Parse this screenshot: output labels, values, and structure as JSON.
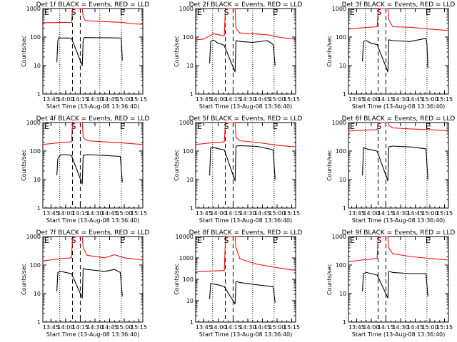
{
  "colors": {
    "events": "#000000",
    "lld": "#ee1111",
    "axes": "#000000",
    "background": "#ffffff"
  },
  "chart_data": [
    {
      "type": "line",
      "title": "Det 1f BLACK = Events, RED = LLD",
      "xlabel": "Start Time (13-Aug-08 13:36:40)",
      "ylabel": "Counts/sec",
      "yscale": "log",
      "ylim": [
        1,
        1000
      ],
      "xlim": [
        "13:36:40",
        "15:19:00"
      ],
      "x_ticks": [
        "13:45",
        "14:00",
        "14:15",
        "14:30",
        "14:45",
        "15:00",
        "15:15"
      ],
      "y_ticks": [
        "1",
        "10",
        "100",
        "1000"
      ],
      "grid": false,
      "markers": [
        "E",
        "S",
        "E"
      ],
      "dotted_lines": [
        "13:54",
        "14:35",
        "14:57"
      ],
      "dashed_lines": [
        "14:07",
        "14:15"
      ],
      "series": [
        {
          "color": "#000000",
          "x": [
            "13:51",
            "13:52",
            "13:53",
            "13:57",
            "14:02",
            "14:06",
            "14:17",
            "14:18",
            "14:19",
            "14:30",
            "14:45",
            "14:57",
            "14:58"
          ],
          "values": [
            13,
            75,
            95,
            92,
            93,
            90,
            10,
            80,
            96,
            95,
            94,
            92,
            15
          ]
        },
        {
          "color": "#ee1111",
          "x": [
            "13:36",
            "13:45",
            "14:00",
            "14:06",
            "14:07",
            "14:08",
            "14:17",
            "14:18",
            "14:20",
            "14:30",
            "14:45",
            "14:57",
            "15:10",
            "15:19"
          ],
          "values": [
            320,
            320,
            330,
            320,
            900,
            1000,
            1000,
            520,
            380,
            360,
            340,
            330,
            290,
            280
          ]
        }
      ]
    },
    {
      "type": "line",
      "title": "Det 2f BLACK = Events, RED = LLD",
      "xlabel": "Start Time (13-Aug-08 13:36:40)",
      "ylabel": "Counts/sec",
      "yscale": "log",
      "ylim": [
        1,
        1000
      ],
      "xlim": [
        "13:36:40",
        "15:19:00"
      ],
      "x_ticks": [
        "13:45",
        "14:00",
        "14:15",
        "14:30",
        "14:45",
        "15:00",
        "15:15"
      ],
      "y_ticks": [
        "1",
        "10",
        "100",
        "1000"
      ],
      "grid": false,
      "markers": [
        "E",
        "S",
        "E"
      ],
      "dotted_lines": [
        "13:54",
        "14:35",
        "14:57"
      ],
      "dashed_lines": [
        "14:07",
        "14:15"
      ],
      "series": [
        {
          "color": "#000000",
          "x": [
            "13:51",
            "13:52",
            "13:55",
            "14:00",
            "14:04",
            "14:06",
            "14:17",
            "14:18",
            "14:22",
            "14:35",
            "14:50",
            "14:56",
            "14:58"
          ],
          "values": [
            12,
            70,
            78,
            60,
            55,
            50,
            6,
            75,
            70,
            65,
            75,
            55,
            10
          ]
        },
        {
          "color": "#ee1111",
          "x": [
            "13:36",
            "13:45",
            "13:55",
            "14:06",
            "14:07",
            "14:08",
            "14:17",
            "14:18",
            "14:22",
            "14:35",
            "14:50",
            "15:05",
            "15:19"
          ],
          "values": [
            80,
            85,
            130,
            110,
            800,
            1000,
            1000,
            200,
            140,
            130,
            120,
            95,
            85
          ]
        }
      ]
    },
    {
      "type": "line",
      "title": "Det 3f BLACK = Events, RED = LLD",
      "xlabel": "Start Time (13-Aug-08 13:36:40)",
      "ylabel": "Counts/sec",
      "yscale": "log",
      "ylim": [
        1,
        1000
      ],
      "xlim": [
        "13:36:40",
        "15:19:00"
      ],
      "x_ticks": [
        "13:45",
        "14:00",
        "14:15",
        "14:30",
        "14:45",
        "15:00",
        "15:15"
      ],
      "y_ticks": [
        "1",
        "10",
        "100",
        "1000"
      ],
      "grid": false,
      "markers": [
        "E",
        "S",
        "E"
      ],
      "dotted_lines": [
        "13:54",
        "14:35",
        "14:57"
      ],
      "dashed_lines": [
        "14:07",
        "14:15"
      ],
      "series": [
        {
          "color": "#000000",
          "x": [
            "13:51",
            "13:52",
            "13:55",
            "14:00",
            "14:06",
            "14:17",
            "14:18",
            "14:22",
            "14:40",
            "14:56",
            "14:57",
            "14:58"
          ],
          "values": [
            14,
            70,
            75,
            60,
            55,
            6,
            80,
            75,
            70,
            90,
            55,
            8
          ]
        },
        {
          "color": "#ee1111",
          "x": [
            "13:36",
            "13:50",
            "14:06",
            "14:07",
            "14:08",
            "14:17",
            "14:18",
            "14:22",
            "14:40",
            "15:00",
            "15:19"
          ],
          "values": [
            190,
            210,
            230,
            800,
            1000,
            1000,
            400,
            230,
            220,
            190,
            170
          ]
        }
      ]
    },
    {
      "type": "line",
      "title": "Det 4f BLACK = Events, RED = LLD",
      "xlabel": "Start Time (13-Aug-08 13:36:40)",
      "ylabel": "Counts/sec",
      "yscale": "log",
      "ylim": [
        1,
        1000
      ],
      "xlim": [
        "13:36:40",
        "15:19:00"
      ],
      "x_ticks": [
        "13:45",
        "14:00",
        "14:15",
        "14:30",
        "14:45",
        "15:00",
        "15:15"
      ],
      "y_ticks": [
        "1",
        "10",
        "100",
        "1000"
      ],
      "grid": false,
      "markers": [
        "E",
        "S",
        "E"
      ],
      "dotted_lines": [
        "13:54",
        "14:35",
        "14:57"
      ],
      "dashed_lines": [
        "14:07",
        "14:15"
      ],
      "series": [
        {
          "color": "#000000",
          "x": [
            "13:51",
            "13:52",
            "13:55",
            "14:00",
            "14:06",
            "14:17",
            "14:18",
            "14:22",
            "14:40",
            "14:56",
            "14:58"
          ],
          "values": [
            14,
            55,
            75,
            75,
            70,
            7,
            70,
            75,
            70,
            65,
            8
          ]
        },
        {
          "color": "#ee1111",
          "x": [
            "13:36",
            "13:50",
            "14:06",
            "14:07",
            "14:08",
            "14:17",
            "14:18",
            "14:22",
            "14:40",
            "15:00",
            "15:19"
          ],
          "values": [
            170,
            190,
            210,
            800,
            1000,
            1000,
            300,
            230,
            210,
            190,
            170
          ]
        }
      ]
    },
    {
      "type": "line",
      "title": "Det 5f BLACK = Events, RED = LLD",
      "xlabel": "Start Time (13-Aug-08 13:36:40)",
      "ylabel": "Counts/sec",
      "yscale": "log",
      "ylim": [
        1,
        1000
      ],
      "xlim": [
        "13:36:40",
        "15:19:00"
      ],
      "x_ticks": [
        "13:45",
        "14:00",
        "14:15",
        "14:30",
        "14:45",
        "15:00",
        "15:15"
      ],
      "y_ticks": [
        "1",
        "10",
        "100",
        "1000"
      ],
      "grid": false,
      "markers": [
        "E",
        "S",
        "E"
      ],
      "dotted_lines": [
        "13:54",
        "14:35",
        "14:57"
      ],
      "dashed_lines": [
        "14:07",
        "14:15"
      ],
      "series": [
        {
          "color": "#000000",
          "x": [
            "13:51",
            "13:52",
            "13:55",
            "14:00",
            "14:06",
            "14:17",
            "14:18",
            "14:22",
            "14:40",
            "14:56",
            "14:58"
          ],
          "values": [
            14,
            130,
            135,
            120,
            110,
            9,
            150,
            155,
            145,
            110,
            10
          ]
        },
        {
          "color": "#ee1111",
          "x": [
            "13:36",
            "13:50",
            "14:06",
            "14:07",
            "14:08",
            "14:17",
            "14:18",
            "14:22",
            "14:40",
            "15:00",
            "15:19"
          ],
          "values": [
            170,
            190,
            210,
            800,
            1000,
            1000,
            300,
            230,
            200,
            160,
            140
          ]
        }
      ]
    },
    {
      "type": "line",
      "title": "Det 6f BLACK = Events, RED = LLD",
      "xlabel": "Start Time (13-Aug-08 13:36:40)",
      "ylabel": "Counts/sec",
      "yscale": "log",
      "ylim": [
        1,
        1000
      ],
      "xlim": [
        "13:36:40",
        "15:19:00"
      ],
      "x_ticks": [
        "13:45",
        "14:00",
        "14:15",
        "14:30",
        "14:45",
        "15:00",
        "15:15"
      ],
      "y_ticks": [
        "1",
        "10",
        "100",
        "1000"
      ],
      "grid": false,
      "markers": [
        "E",
        "S",
        "E"
      ],
      "dotted_lines": [
        "13:54",
        "14:35",
        "14:57"
      ],
      "dashed_lines": [
        "14:07",
        "14:15"
      ],
      "series": [
        {
          "color": "#000000",
          "x": [
            "13:51",
            "13:52",
            "13:55",
            "14:00",
            "14:06",
            "14:17",
            "14:18",
            "14:22",
            "14:40",
            "14:56",
            "14:58"
          ],
          "values": [
            14,
            130,
            120,
            110,
            100,
            9,
            140,
            150,
            140,
            120,
            10
          ]
        },
        {
          "color": "#ee1111",
          "x": [
            "13:36",
            "13:50",
            "14:06",
            "14:07",
            "14:08",
            "14:17",
            "14:18",
            "14:22",
            "14:40",
            "15:00",
            "15:19"
          ],
          "values": [
            500,
            540,
            560,
            900,
            1000,
            1000,
            800,
            650,
            600,
            560,
            520
          ]
        }
      ]
    },
    {
      "type": "line",
      "title": "Det 7f BLACK = Events, RED = LLD",
      "xlabel": "Start Time (13-Aug-08 13:36:40)",
      "ylabel": "Counts/sec",
      "yscale": "log",
      "ylim": [
        1,
        1000
      ],
      "xlim": [
        "13:36:40",
        "15:19:00"
      ],
      "x_ticks": [
        "13:45",
        "14:00",
        "14:15",
        "14:30",
        "14:45",
        "15:00",
        "15:15"
      ],
      "y_ticks": [
        "1",
        "10",
        "100",
        "1000"
      ],
      "grid": false,
      "markers": [
        "E",
        "S",
        "E"
      ],
      "dotted_lines": [
        "13:54",
        "14:35",
        "14:57"
      ],
      "dashed_lines": [
        "14:07",
        "14:15"
      ],
      "series": [
        {
          "color": "#000000",
          "x": [
            "13:51",
            "13:52",
            "13:55",
            "14:00",
            "14:06",
            "14:17",
            "14:18",
            "14:22",
            "14:40",
            "14:50",
            "14:56",
            "14:58"
          ],
          "values": [
            12,
            55,
            60,
            55,
            50,
            7,
            75,
            70,
            60,
            70,
            55,
            8
          ]
        },
        {
          "color": "#ee1111",
          "x": [
            "13:36",
            "13:50",
            "14:06",
            "14:07",
            "14:08",
            "14:17",
            "14:18",
            "14:22",
            "14:40",
            "14:50",
            "15:00",
            "15:19"
          ],
          "values": [
            140,
            160,
            180,
            800,
            1000,
            1000,
            400,
            220,
            180,
            230,
            180,
            150
          ]
        }
      ]
    },
    {
      "type": "line",
      "title": "Det 8f BLACK = Events, RED = LLD",
      "xlabel": "Start Time (13-Aug-08 13:36:40)",
      "ylabel": "Counts/sec",
      "yscale": "log",
      "ylim": [
        1,
        10000
      ],
      "xlim": [
        "13:36:40",
        "15:19:00"
      ],
      "x_ticks": [
        "13:45",
        "14:00",
        "14:15",
        "14:30",
        "14:45",
        "15:00",
        "15:15"
      ],
      "y_ticks": [
        "1",
        "10",
        "100",
        "1000",
        "10000"
      ],
      "grid": false,
      "markers": [
        "E",
        "S",
        "E"
      ],
      "dotted_lines": [
        "13:54",
        "14:35",
        "14:57"
      ],
      "dashed_lines": [
        "14:07",
        "14:15"
      ],
      "series": [
        {
          "color": "#000000",
          "x": [
            "13:51",
            "13:52",
            "13:55",
            "14:00",
            "14:06",
            "14:17",
            "14:18",
            "14:22",
            "14:40",
            "14:56",
            "14:58"
          ],
          "values": [
            12,
            65,
            60,
            55,
            45,
            7,
            80,
            70,
            55,
            45,
            8
          ]
        },
        {
          "color": "#ee1111",
          "x": [
            "13:36",
            "13:50",
            "14:06",
            "14:07",
            "14:08",
            "14:17",
            "14:18",
            "14:22",
            "14:40",
            "15:00",
            "15:19"
          ],
          "values": [
            220,
            240,
            260,
            5000,
            10000,
            10000,
            3000,
            900,
            500,
            350,
            260
          ]
        }
      ]
    },
    {
      "type": "line",
      "title": "Det 9f BLACK = Events, RED = LLD",
      "xlabel": "Start Time (13-Aug-08 13:36:40)",
      "ylabel": "Counts/sec",
      "yscale": "log",
      "ylim": [
        1,
        1000
      ],
      "xlim": [
        "13:36:40",
        "15:19:00"
      ],
      "x_ticks": [
        "13:45",
        "14:00",
        "14:15",
        "14:30",
        "14:45",
        "15:00",
        "15:15"
      ],
      "y_ticks": [
        "1",
        "10",
        "100",
        "1000"
      ],
      "grid": false,
      "markers": [
        "E",
        "S",
        "E"
      ],
      "dotted_lines": [
        "13:54",
        "14:35",
        "14:57"
      ],
      "dashed_lines": [
        "14:07",
        "14:15"
      ],
      "series": [
        {
          "color": "#000000",
          "x": [
            "13:51",
            "13:52",
            "13:55",
            "14:00",
            "14:06",
            "14:17",
            "14:18",
            "14:22",
            "14:40",
            "14:56",
            "14:58"
          ],
          "values": [
            12,
            50,
            55,
            50,
            45,
            7,
            60,
            55,
            50,
            50,
            8
          ]
        },
        {
          "color": "#ee1111",
          "x": [
            "13:36",
            "13:50",
            "14:06",
            "14:07",
            "14:08",
            "14:17",
            "14:18",
            "14:22",
            "14:40",
            "15:00",
            "15:19"
          ],
          "values": [
            130,
            150,
            170,
            800,
            1000,
            1000,
            400,
            250,
            200,
            170,
            150
          ]
        }
      ]
    }
  ]
}
